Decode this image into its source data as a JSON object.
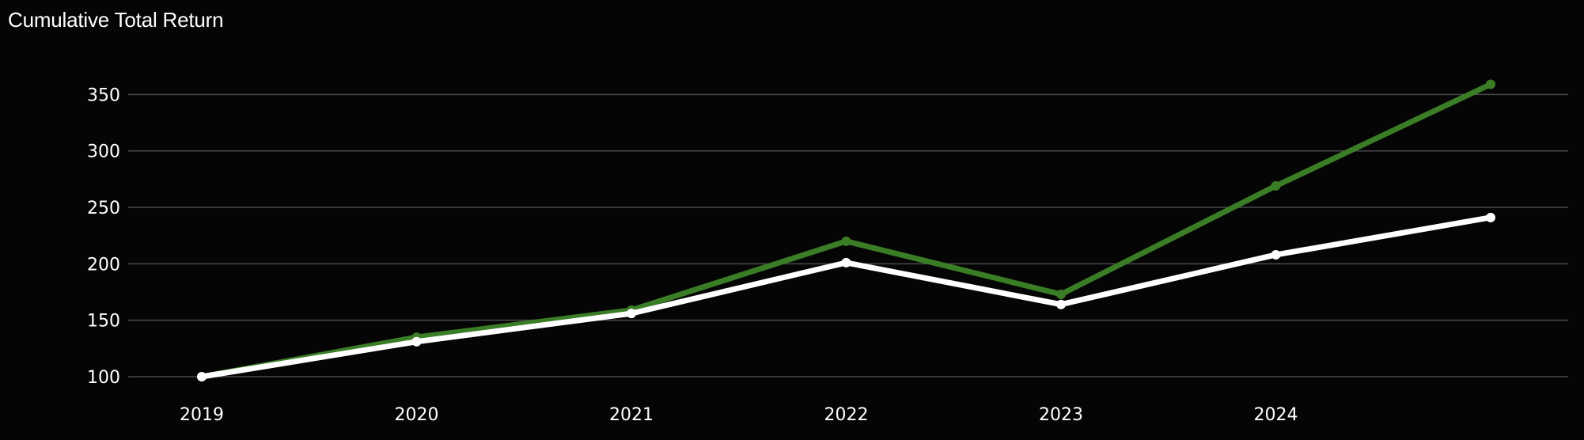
{
  "chart_data": {
    "type": "line",
    "title": "Cumulative Total Return",
    "categories": [
      "2019",
      "2020",
      "2021",
      "2022",
      "2023",
      "2024",
      ""
    ],
    "ylim": [
      100,
      375
    ],
    "y_ticks": [
      100,
      150,
      200,
      250,
      300,
      350
    ],
    "grid": true,
    "series": [
      {
        "color": "#3a7d26",
        "values": [
          100,
          135,
          159,
          220,
          173,
          269,
          359
        ]
      },
      {
        "color": "#ffffff",
        "values": [
          100,
          131,
          156,
          201,
          164,
          208,
          241
        ]
      }
    ]
  }
}
